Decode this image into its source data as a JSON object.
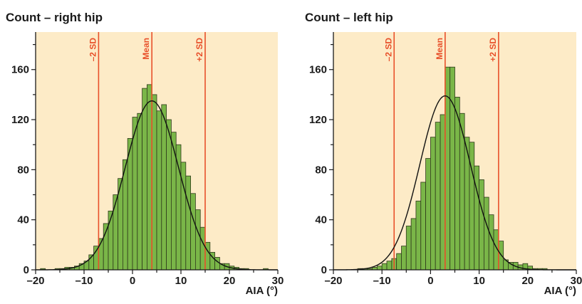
{
  "colors": {
    "plot_background": "#fdebc7",
    "bar_fill": "#7ab648",
    "bar_stroke": "#2f3a1c",
    "reference_line": "#e8502a",
    "curve": "#111111",
    "text": "#1a1a1a"
  },
  "chart_data": [
    {
      "type": "bar",
      "title": "Count – right hip",
      "xlabel": "AIA (°)",
      "ylabel": "",
      "xlim": [
        -20,
        30
      ],
      "ylim": [
        0,
        190
      ],
      "x_ticks": [
        -20,
        -10,
        0,
        10,
        20,
        30
      ],
      "x_tick_labels": [
        "–20",
        "–10",
        "0",
        "10",
        "20",
        "30"
      ],
      "y_ticks": [
        0,
        40,
        80,
        120,
        160
      ],
      "y_tick_labels": [
        "0",
        "40",
        "80",
        "120",
        "160"
      ],
      "grid": false,
      "bin_width": 1,
      "bins": {
        "x_start": [
          -19,
          -16,
          -15,
          -14,
          -13,
          -12,
          -11,
          -10,
          -9,
          -8,
          -7,
          -6,
          -5,
          -4,
          -3,
          -2,
          -1,
          0,
          1,
          2,
          3,
          4,
          5,
          6,
          7,
          8,
          9,
          10,
          11,
          12,
          13,
          14,
          15,
          16,
          17,
          18,
          19,
          20,
          21,
          22,
          23,
          27
        ],
        "counts": [
          1,
          1,
          1,
          2,
          2,
          3,
          5,
          7,
          12,
          19,
          25,
          37,
          47,
          60,
          73,
          88,
          105,
          122,
          125,
          145,
          148,
          140,
          127,
          132,
          120,
          110,
          100,
          86,
          75,
          61,
          48,
          34,
          22,
          14,
          10,
          5,
          5,
          3,
          2,
          1,
          1,
          1
        ]
      },
      "reference_lines": [
        {
          "label": "–2 SD",
          "x": -7
        },
        {
          "label": "Mean",
          "x": 4
        },
        {
          "label": "+2 SD",
          "x": 15
        }
      ],
      "normal_curve": {
        "mean": 4,
        "sd": 5.5,
        "peak": 135
      }
    },
    {
      "type": "bar",
      "title": "Count – left hip",
      "xlabel": "AIA (°)",
      "ylabel": "",
      "xlim": [
        -20,
        30
      ],
      "ylim": [
        0,
        190
      ],
      "x_ticks": [
        -20,
        -10,
        0,
        10,
        20,
        30
      ],
      "x_tick_labels": [
        "–20",
        "–10",
        "0",
        "10",
        "20",
        "30"
      ],
      "y_ticks": [
        0,
        40,
        80,
        120,
        160
      ],
      "y_tick_labels": [
        "0",
        "40",
        "80",
        "120",
        "160"
      ],
      "grid": false,
      "bin_width": 1,
      "bins": {
        "x_start": [
          -15,
          -14,
          -13,
          -12,
          -11,
          -10,
          -9,
          -8,
          -7,
          -6,
          -5,
          -4,
          -3,
          -2,
          -1,
          0,
          1,
          2,
          3,
          4,
          5,
          6,
          7,
          8,
          9,
          10,
          11,
          12,
          13,
          14,
          15,
          16,
          17,
          18,
          19,
          20,
          21,
          22,
          23
        ],
        "counts": [
          1,
          1,
          1,
          2,
          3,
          5,
          7,
          9,
          13,
          19,
          35,
          41,
          55,
          70,
          89,
          106,
          118,
          124,
          162,
          162,
          138,
          125,
          106,
          102,
          83,
          72,
          58,
          44,
          32,
          23,
          8,
          6,
          6,
          4,
          5,
          3,
          1,
          1,
          1
        ]
      },
      "reference_lines": [
        {
          "label": "–2 SD",
          "x": -7.5
        },
        {
          "label": "Mean",
          "x": 3
        },
        {
          "label": "+2 SD",
          "x": 14
        }
      ],
      "normal_curve": {
        "mean": 3,
        "sd": 5.2,
        "peak": 139
      }
    }
  ]
}
